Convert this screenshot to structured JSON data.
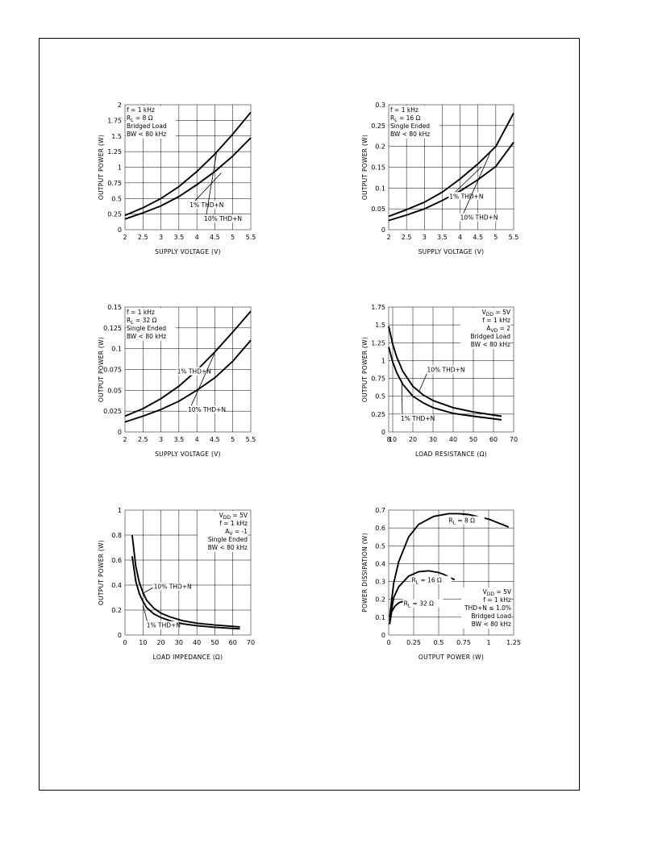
{
  "chart_data": [
    {
      "type": "line",
      "xlabel": "SUPPLY VOLTAGE (V)",
      "ylabel": "OUTPUT POWER (W)",
      "xlim": [
        2,
        5.5
      ],
      "ylim": [
        0,
        2
      ],
      "xticks": [
        "2",
        "2.5",
        "3",
        "3.5",
        "4",
        "4.5",
        "5",
        "5.5"
      ],
      "yticks": [
        "0",
        "0.25",
        "0.5",
        "0.75",
        "1",
        "1.25",
        "1.5",
        "1.75",
        "2"
      ],
      "grid": true,
      "annotations": [
        {
          "lines": [
            "f = 1 kHz",
            "R_L = 8 Ω",
            "Bridged Load",
            "BW < 80 kHz"
          ],
          "position": "top-left"
        }
      ],
      "series": [
        {
          "name": "1% THD+N",
          "x": [
            2,
            2.5,
            3,
            3.5,
            4,
            4.5,
            5,
            5.5
          ],
          "y": [
            0.17,
            0.27,
            0.38,
            0.53,
            0.72,
            0.93,
            1.18,
            1.47
          ]
        },
        {
          "name": "10% THD+N",
          "x": [
            2,
            2.5,
            3,
            3.5,
            4,
            4.5,
            5,
            5.5
          ],
          "y": [
            0.23,
            0.35,
            0.5,
            0.69,
            0.93,
            1.21,
            1.53,
            1.88
          ]
        }
      ]
    },
    {
      "type": "line",
      "xlabel": "SUPPLY VOLTAGE (V)",
      "ylabel": "OUTPUT POWER (W)",
      "xlim": [
        2,
        5.5
      ],
      "ylim": [
        0,
        0.3
      ],
      "xticks": [
        "2",
        "2.5",
        "3",
        "3.5",
        "4",
        "4.5",
        "5",
        "5.5"
      ],
      "yticks": [
        "0",
        "0.05",
        "0.1",
        "0.15",
        "0.2",
        "0.25",
        "0.3"
      ],
      "grid": true,
      "annotations": [
        {
          "lines": [
            "f = 1 kHz",
            "R_L = 16 Ω",
            "Single Ended",
            "BW < 80 kHz"
          ],
          "position": "top-left"
        }
      ],
      "series": [
        {
          "name": "1% THD+N",
          "x": [
            2,
            2.5,
            3,
            3.5,
            4,
            4.5,
            5,
            5.5
          ],
          "y": [
            0.022,
            0.035,
            0.05,
            0.07,
            0.093,
            0.12,
            0.152,
            0.21
          ]
        },
        {
          "name": "10% THD+N",
          "x": [
            2,
            2.5,
            3,
            3.5,
            4,
            4.5,
            5,
            5.5
          ],
          "y": [
            0.032,
            0.048,
            0.066,
            0.09,
            0.122,
            0.158,
            0.2,
            0.28
          ]
        }
      ]
    },
    {
      "type": "line",
      "xlabel": "SUPPLY VOLTAGE (V)",
      "ylabel": "OUTPUT POWER (W)",
      "xlim": [
        2,
        5.5
      ],
      "ylim": [
        0,
        0.15
      ],
      "xticks": [
        "2",
        "2.5",
        "3",
        "3.5",
        "4",
        "4.5",
        "5",
        "5.5"
      ],
      "yticks": [
        "0",
        "0.025",
        "0.05",
        "0.075",
        "0.1",
        "0.125",
        "0.15"
      ],
      "grid": true,
      "annotations": [
        {
          "lines": [
            "f = 1 kHz",
            "R_L = 32 Ω",
            "Single Ended",
            "BW < 80 kHz"
          ],
          "position": "top-left"
        }
      ],
      "series": [
        {
          "name": "1% THD+N",
          "x": [
            2,
            2.5,
            3,
            3.5,
            4,
            4.5,
            5,
            5.5
          ],
          "y": [
            0.012,
            0.019,
            0.027,
            0.037,
            0.05,
            0.065,
            0.085,
            0.11
          ]
        },
        {
          "name": "10% THD+N",
          "x": [
            2,
            2.5,
            3,
            3.5,
            4,
            4.5,
            5,
            5.5
          ],
          "y": [
            0.019,
            0.028,
            0.04,
            0.055,
            0.074,
            0.096,
            0.12,
            0.145
          ]
        }
      ]
    },
    {
      "type": "line",
      "xlabel": "LOAD RESISTANCE (Ω)",
      "ylabel": "OUTPUT POWER (W)",
      "xlim": [
        8,
        70
      ],
      "ylim": [
        0,
        1.75
      ],
      "xticks": [
        "8",
        "10",
        "20",
        "30",
        "40",
        "50",
        "60",
        "70"
      ],
      "yticks": [
        "0",
        "0.25",
        "0.5",
        "0.75",
        "1",
        "1.25",
        "1.5",
        "1.75"
      ],
      "grid": true,
      "annotations": [
        {
          "lines": [
            "V_DD = 5V",
            "f = 1 kHz",
            "A_VD = 2",
            "Bridged Load",
            "BW < 80 kHz"
          ],
          "position": "top-right"
        }
      ],
      "series": [
        {
          "name": "1% THD+N",
          "x": [
            8,
            10,
            12,
            15,
            20,
            25,
            30,
            40,
            50,
            64
          ],
          "y": [
            1.19,
            0.98,
            0.83,
            0.67,
            0.5,
            0.41,
            0.34,
            0.26,
            0.22,
            0.17
          ]
        },
        {
          "name": "10% THD+N",
          "x": [
            8,
            10,
            12,
            15,
            20,
            25,
            30,
            40,
            50,
            64
          ],
          "y": [
            1.48,
            1.23,
            1.05,
            0.85,
            0.64,
            0.52,
            0.44,
            0.34,
            0.28,
            0.22
          ]
        }
      ]
    },
    {
      "type": "line",
      "xlabel": "LOAD IMPEDANCE (Ω)",
      "ylabel": "OUTPUT POWER (W)",
      "xlim": [
        0,
        70
      ],
      "ylim": [
        0,
        1
      ],
      "xticks": [
        "0",
        "10",
        "20",
        "30",
        "40",
        "50",
        "60",
        "70"
      ],
      "yticks": [
        "0",
        "0.2",
        "0.4",
        "0.6",
        "0.8",
        "1"
      ],
      "grid": true,
      "annotations": [
        {
          "lines": [
            "V_DD = 5V",
            "f = 1 kHz",
            "A_V = -1",
            "Single Ended",
            "BW < 80 kHz"
          ],
          "position": "top-right"
        }
      ],
      "series": [
        {
          "name": "1% THD+N",
          "x": [
            4,
            6,
            8,
            10,
            12,
            16,
            20,
            25,
            32,
            40,
            50,
            64
          ],
          "y": [
            0.63,
            0.43,
            0.33,
            0.27,
            0.22,
            0.17,
            0.14,
            0.115,
            0.09,
            0.075,
            0.062,
            0.05
          ]
        },
        {
          "name": "10% THD+N",
          "x": [
            4,
            6,
            8,
            10,
            12,
            16,
            20,
            25,
            32,
            40,
            50,
            64
          ],
          "y": [
            0.8,
            0.55,
            0.42,
            0.34,
            0.28,
            0.215,
            0.175,
            0.145,
            0.115,
            0.095,
            0.08,
            0.065
          ]
        }
      ]
    },
    {
      "type": "line",
      "xlabel": "OUTPUT POWER (W)",
      "ylabel": "POWER DISSIPATION (W)",
      "xlim": [
        0,
        1.25
      ],
      "ylim": [
        0,
        0.7
      ],
      "xticks": [
        "0",
        "0.25",
        "0.5",
        "0.75",
        "1",
        "1.25"
      ],
      "yticks": [
        "0",
        "0.1",
        "0.2",
        "0.3",
        "0.4",
        "0.5",
        "0.6",
        "0.7"
      ],
      "grid": true,
      "annotations": [
        {
          "lines": [
            "V_DD = 5V",
            "f = 1 kHz",
            "THD+N ≤ 1.0%",
            "Bridged Load",
            "BW < 80 kHz"
          ],
          "position": "bottom-right"
        }
      ],
      "series": [
        {
          "name": "R_L = 8 Ω",
          "x": [
            0.01,
            0.05,
            0.1,
            0.2,
            0.3,
            0.45,
            0.6,
            0.7,
            0.8,
            1.0,
            1.2
          ],
          "y": [
            0.1,
            0.29,
            0.41,
            0.55,
            0.62,
            0.665,
            0.68,
            0.68,
            0.675,
            0.65,
            0.605
          ]
        },
        {
          "name": "R_L = 16 Ω",
          "x": [
            0.01,
            0.05,
            0.1,
            0.2,
            0.3,
            0.4,
            0.5,
            0.55,
            0.66
          ],
          "y": [
            0.08,
            0.21,
            0.27,
            0.33,
            0.355,
            0.36,
            0.35,
            0.34,
            0.31
          ]
        },
        {
          "name": "R_L = 32 Ω",
          "x": [
            0.01,
            0.03,
            0.06,
            0.1,
            0.15,
            0.2,
            0.25,
            0.3,
            0.35
          ],
          "y": [
            0.06,
            0.13,
            0.16,
            0.18,
            0.19,
            0.192,
            0.19,
            0.185,
            0.17
          ]
        }
      ]
    }
  ]
}
